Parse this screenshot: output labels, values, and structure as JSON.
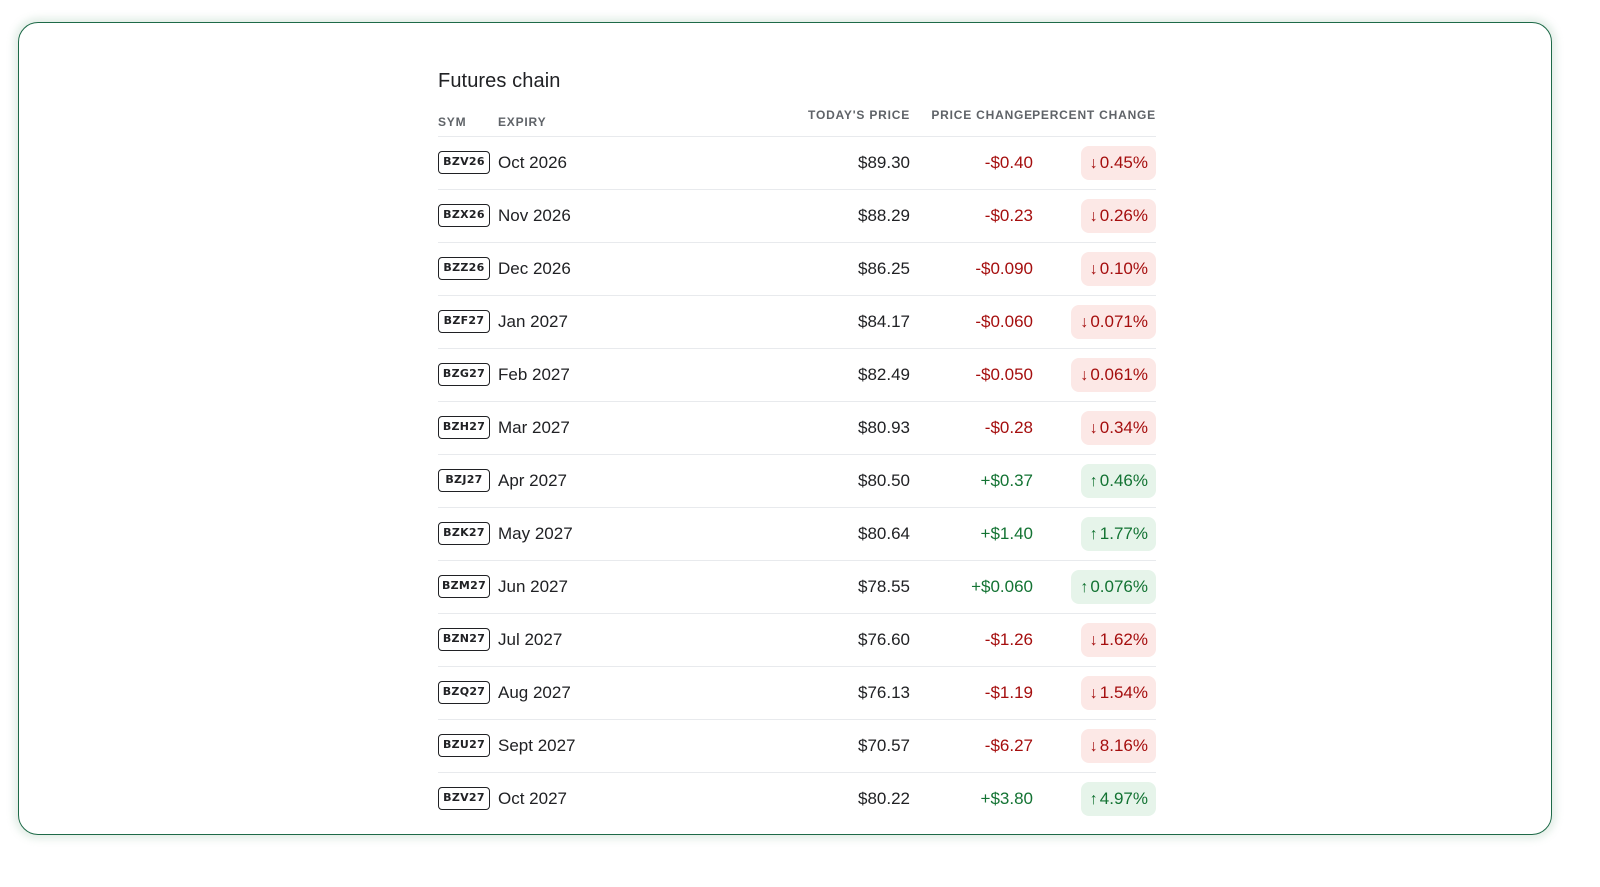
{
  "title": "Futures chain",
  "columns": {
    "sym": "SYM",
    "expiry": "EXPIRY",
    "price": "TODAY'S PRICE",
    "change": "PRICE CHANGE",
    "percent": "PERCENT CHANGE"
  },
  "colors": {
    "negative_text": "#a50e0e",
    "negative_bg": "#fce8e6",
    "positive_text": "#137333",
    "positive_bg": "#e6f4ea",
    "frame_border": "#1e6a48"
  },
  "icons": {
    "down": "arrow-down-icon",
    "up": "arrow-up-icon"
  },
  "rows": [
    {
      "sym": "BZV26",
      "expiry": "Oct 2026",
      "price": "$89.30",
      "change": "-$0.40",
      "percent": "0.45%",
      "direction": "down"
    },
    {
      "sym": "BZX26",
      "expiry": "Nov 2026",
      "price": "$88.29",
      "change": "-$0.23",
      "percent": "0.26%",
      "direction": "down"
    },
    {
      "sym": "BZZ26",
      "expiry": "Dec 2026",
      "price": "$86.25",
      "change": "-$0.090",
      "percent": "0.10%",
      "direction": "down"
    },
    {
      "sym": "BZF27",
      "expiry": "Jan 2027",
      "price": "$84.17",
      "change": "-$0.060",
      "percent": "0.071%",
      "direction": "down"
    },
    {
      "sym": "BZG27",
      "expiry": "Feb 2027",
      "price": "$82.49",
      "change": "-$0.050",
      "percent": "0.061%",
      "direction": "down"
    },
    {
      "sym": "BZH27",
      "expiry": "Mar 2027",
      "price": "$80.93",
      "change": "-$0.28",
      "percent": "0.34%",
      "direction": "down"
    },
    {
      "sym": "BZJ27",
      "expiry": "Apr 2027",
      "price": "$80.50",
      "change": "+$0.37",
      "percent": "0.46%",
      "direction": "up"
    },
    {
      "sym": "BZK27",
      "expiry": "May 2027",
      "price": "$80.64",
      "change": "+$1.40",
      "percent": "1.77%",
      "direction": "up"
    },
    {
      "sym": "BZM27",
      "expiry": "Jun 2027",
      "price": "$78.55",
      "change": "+$0.060",
      "percent": "0.076%",
      "direction": "up"
    },
    {
      "sym": "BZN27",
      "expiry": "Jul 2027",
      "price": "$76.60",
      "change": "-$1.26",
      "percent": "1.62%",
      "direction": "down"
    },
    {
      "sym": "BZQ27",
      "expiry": "Aug 2027",
      "price": "$76.13",
      "change": "-$1.19",
      "percent": "1.54%",
      "direction": "down"
    },
    {
      "sym": "BZU27",
      "expiry": "Sept 2027",
      "price": "$70.57",
      "change": "-$6.27",
      "percent": "8.16%",
      "direction": "down"
    },
    {
      "sym": "BZV27",
      "expiry": "Oct 2027",
      "price": "$80.22",
      "change": "+$3.80",
      "percent": "4.97%",
      "direction": "up"
    }
  ]
}
